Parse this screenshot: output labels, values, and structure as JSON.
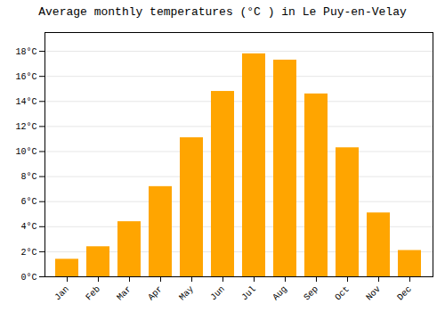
{
  "chart_data": {
    "type": "bar",
    "title": "Average monthly temperatures (°C ) in Le Puy-en-Velay",
    "categories": [
      "Jan",
      "Feb",
      "Mar",
      "Apr",
      "May",
      "Jun",
      "Jul",
      "Aug",
      "Sep",
      "Oct",
      "Nov",
      "Dec"
    ],
    "values": [
      1.4,
      2.4,
      4.4,
      7.2,
      11.1,
      14.8,
      17.8,
      17.3,
      14.6,
      10.3,
      5.1,
      2.1
    ],
    "color": "#FFA500",
    "ylim": [
      0,
      19.5
    ],
    "yticks": [
      {
        "value": 0,
        "label": "0°C"
      },
      {
        "value": 2,
        "label": "2°C"
      },
      {
        "value": 4,
        "label": "4°C"
      },
      {
        "value": 6,
        "label": "6°C"
      },
      {
        "value": 8,
        "label": "8°C"
      },
      {
        "value": 10,
        "label": "10°C"
      },
      {
        "value": 12,
        "label": "12°C"
      },
      {
        "value": 14,
        "label": "14°C"
      },
      {
        "value": 16,
        "label": "16°C"
      },
      {
        "value": 18,
        "label": "18°C"
      }
    ],
    "grid": true
  }
}
